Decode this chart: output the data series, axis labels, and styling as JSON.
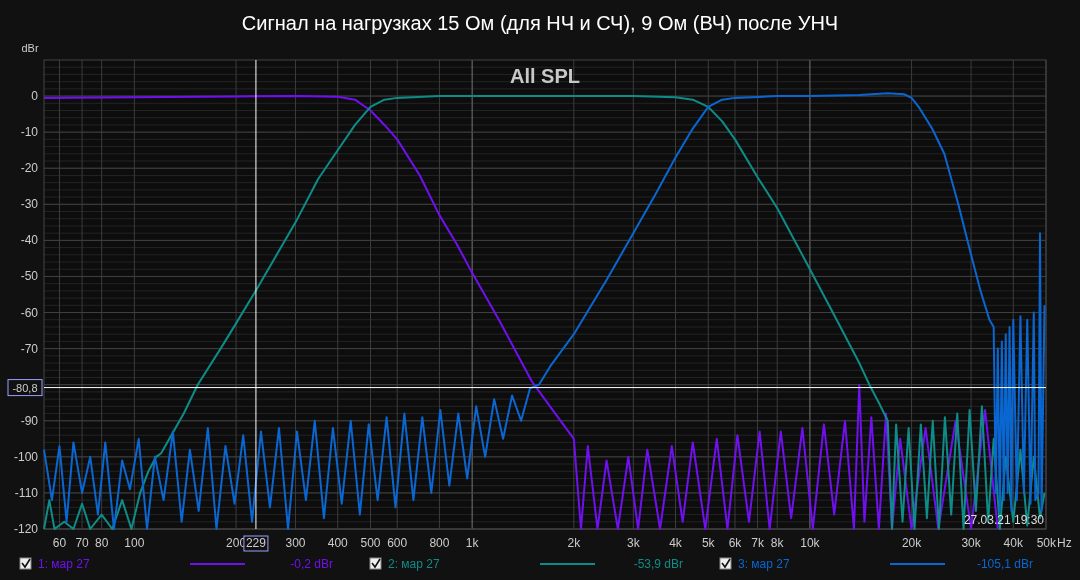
{
  "chart_data": {
    "type": "line",
    "title": "Сигнал на нагрузках 15 Ом (для НЧ и СЧ), 9 Ом (ВЧ) после УНЧ",
    "ylabel": "dBr",
    "log": "x",
    "grid": true,
    "legend": "bottom",
    "line_style": "solid",
    "marker": "none",
    "xlim": [
      54,
      50000
    ],
    "ylim": [
      -120,
      10
    ],
    "xticks": [
      60,
      70,
      80,
      100,
      200,
      300,
      400,
      500,
      600,
      800,
      {
        "value": 1000,
        "label": "1k"
      },
      {
        "value": 2000,
        "label": "2k"
      },
      {
        "value": 3000,
        "label": "3k"
      },
      {
        "value": 4000,
        "label": "4k"
      },
      {
        "value": 5000,
        "label": "5k"
      },
      {
        "value": 6000,
        "label": "6k"
      },
      {
        "value": 7000,
        "label": "7k"
      },
      {
        "value": 8000,
        "label": "8k"
      },
      {
        "value": 10000,
        "label": "10k"
      },
      {
        "value": 20000,
        "label": "20k"
      },
      {
        "value": 30000,
        "label": "30k"
      },
      {
        "value": 40000,
        "label": "40k"
      },
      {
        "value": 50000,
        "label": "50k"
      }
    ],
    "xlabel": "Hz",
    "yticks": [
      -120,
      -110,
      -100,
      -90,
      {
        "value": -80,
        "label": null
      },
      -70,
      -60,
      -50,
      -40,
      -30,
      -20,
      -10,
      0
    ],
    "ref_lines": [
      {
        "axis": "x",
        "value": 229,
        "label": "229",
        "color": "#ffffff"
      },
      {
        "axis": "y",
        "value": -80.8,
        "label": "-80,8",
        "color": "#ffffff"
      }
    ],
    "annotations": [
      "All SPL",
      "27.03.21 19:30",
      "-0,2 dBr",
      "-53,9 dBr",
      "-105,1 dBr"
    ],
    "series": [
      {
        "name": "1: мар 27",
        "color": "#7010f0",
        "x": [
          54,
          100,
          200,
          300,
          400,
          450,
          500,
          550,
          600,
          700,
          800,
          900,
          1000,
          1200,
          1500,
          1700,
          2000,
          2100,
          2200,
          2350,
          2500,
          2700,
          2900,
          3100,
          3300,
          3600,
          3900,
          4200,
          4500,
          4900,
          5300,
          5700,
          6100,
          6600,
          7100,
          7600,
          8200,
          8800,
          9500,
          10200,
          11000,
          11800,
          12700,
          13500,
          14000,
          14500,
          15200,
          16000,
          16800,
          17500,
          18500,
          20000,
          22000,
          24000,
          27000,
          30000,
          33000,
          36000
        ],
        "values": [
          -0.5,
          -0.3,
          -0.1,
          0,
          -0.2,
          -1,
          -4,
          -8,
          -12,
          -22,
          -33,
          -41,
          -49,
          -62,
          -79,
          -86,
          -95,
          -120,
          -97,
          -120,
          -101,
          -120,
          -100,
          -120,
          -98,
          -120,
          -97,
          -118,
          -96,
          -120,
          -95,
          -120,
          -94,
          -118,
          -93,
          -120,
          -93,
          -117,
          -92,
          -120,
          -91,
          -116,
          -90,
          -120,
          -80,
          -118,
          -89,
          -120,
          -88,
          -120,
          -95,
          -120,
          -92,
          -120,
          -90,
          -120,
          -87,
          -120
        ]
      },
      {
        "name": "2: мар 27",
        "color": "#0e8c88",
        "x": [
          54,
          56,
          58,
          62,
          66,
          70,
          74,
          80,
          86,
          92,
          98,
          104,
          110,
          116,
          120,
          140,
          154,
          180,
          200,
          229,
          260,
          300,
          350,
          400,
          450,
          500,
          550,
          600,
          800,
          1000,
          2000,
          3000,
          4000,
          4500,
          5000,
          5500,
          6000,
          7000,
          8000,
          10000,
          12000,
          14000,
          15000,
          16000,
          17000,
          17500,
          18000,
          18800,
          19600,
          20400,
          21300,
          22200,
          23100,
          24100,
          25100,
          26200,
          27300,
          28500,
          29700,
          31000,
          32300,
          33700,
          35000,
          36500,
          38000,
          40000,
          42000,
          44000,
          46000,
          48000,
          49500
        ],
        "values": [
          -120,
          -112,
          -120,
          -118,
          -120,
          -113,
          -120,
          -116,
          -120,
          -112,
          -120,
          -110,
          -104,
          -100,
          -99,
          -88,
          -80,
          -70,
          -63,
          -53.9,
          -45,
          -35,
          -23,
          -15,
          -8,
          -3,
          -1,
          -0.5,
          0,
          0,
          0,
          0,
          -0.3,
          -1,
          -3,
          -7,
          -12,
          -22.5,
          -31,
          -48,
          -62,
          -74,
          -80,
          -85,
          -90,
          -120,
          -91,
          -118,
          -92,
          -120,
          -91,
          -117,
          -90,
          -120,
          -89,
          -116,
          -88,
          -120,
          -87,
          -115,
          -86,
          -118,
          -95,
          -120,
          -100,
          -118,
          -98,
          -119,
          -100,
          -117,
          -110
        ]
      },
      {
        "name": "3: мар 27",
        "color": "#0a66d0",
        "x": [
          54,
          57,
          60,
          63,
          66,
          70,
          74,
          78,
          82,
          87,
          92,
          97,
          103,
          109,
          115,
          122,
          130,
          138,
          146,
          155,
          165,
          175,
          186,
          198,
          210,
          223,
          237,
          252,
          268,
          285,
          303,
          322,
          342,
          364,
          387,
          411,
          437,
          465,
          494,
          525,
          558,
          593,
          630,
          670,
          712,
          757,
          805,
          856,
          910,
          967,
          1028,
          1093,
          1162,
          1235,
          1313,
          1396,
          1484,
          1577,
          1700,
          2000,
          2500,
          3000,
          3500,
          4000,
          4500,
          5000,
          5500,
          6000,
          8000,
          10000,
          14000,
          17000,
          19000,
          20000,
          21000,
          23000,
          25000,
          27500,
          30000,
          32000,
          34000,
          35000,
          35500,
          36000,
          36500,
          37000,
          37500,
          38000,
          38500,
          39000,
          39500,
          40000,
          41000,
          42000,
          43000,
          44000,
          45000,
          46000,
          46500,
          47500,
          48000,
          48500,
          49500
        ],
        "values": [
          -98,
          -112,
          -97,
          -118,
          -96,
          -110,
          -100,
          -116,
          -96,
          -120,
          -101,
          -109,
          -95,
          -120,
          -100,
          -112,
          -93,
          -118,
          -98,
          -115,
          -92,
          -120,
          -97,
          -113,
          -94,
          -118,
          -93,
          -114,
          -92,
          -120,
          -93,
          -112,
          -90,
          -117,
          -92,
          -113,
          -90,
          -116,
          -91,
          -112,
          -89,
          -114,
          -88,
          -112,
          -89,
          -110,
          -87,
          -108,
          -88,
          -106,
          -86,
          -100,
          -84,
          -95,
          -83,
          -90,
          -81,
          -80,
          -75,
          -66,
          -51,
          -38,
          -27,
          -17,
          -9,
          -3,
          -1,
          -0.5,
          0,
          0,
          0.3,
          0.8,
          0.5,
          -0.5,
          -3,
          -9,
          -16,
          -30,
          -44,
          -54,
          -62,
          -64,
          -110,
          -70,
          -115,
          -68,
          -112,
          -66,
          -110,
          -64,
          -115,
          -62,
          -112,
          -61,
          -110,
          -62,
          -113,
          -60,
          -112,
          -110,
          -38,
          -115,
          -58
        ]
      }
    ]
  }
}
